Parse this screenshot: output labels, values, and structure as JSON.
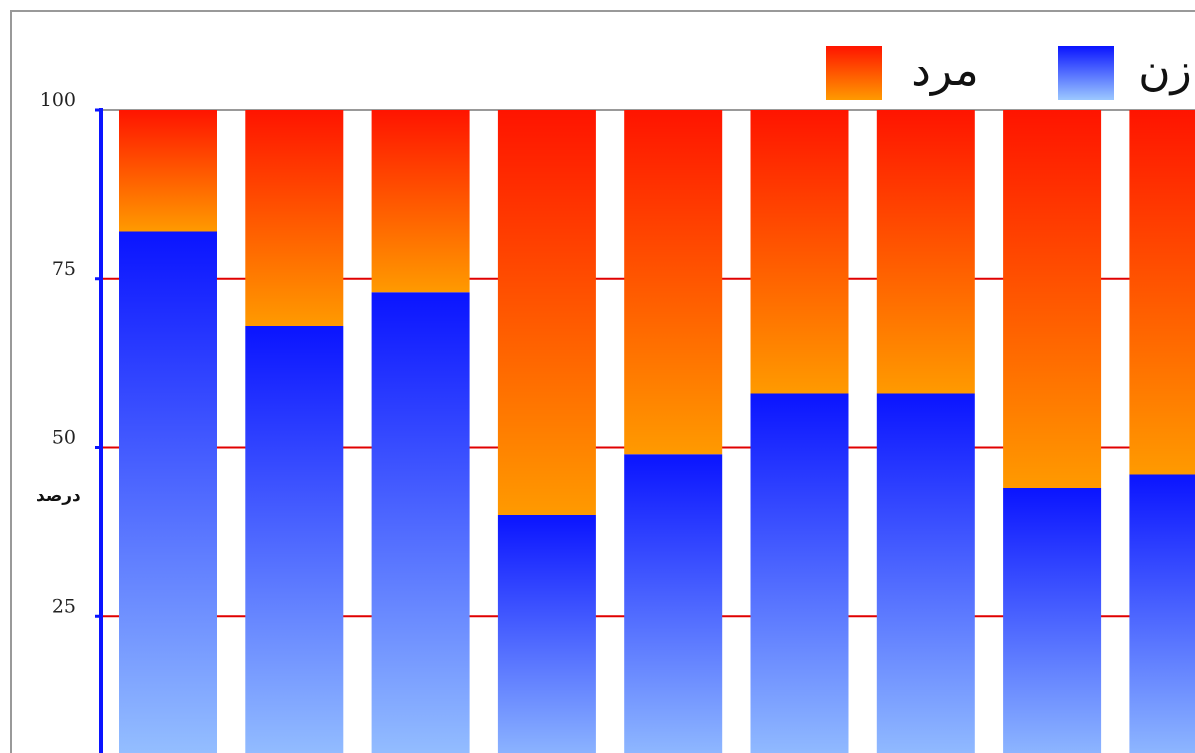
{
  "chart_data": {
    "type": "bar",
    "stacked": true,
    "percent": true,
    "ylabel": "درصد",
    "ylim": [
      0,
      100
    ],
    "yticks": [
      "25",
      "50",
      "75",
      "100"
    ],
    "grid": true,
    "legend": "top-right",
    "categories": [
      "",
      "",
      "",
      "",
      "",
      "",
      "",
      "",
      ""
    ],
    "series": [
      {
        "name": "زن",
        "values": [
          82,
          68,
          73,
          40,
          49,
          58,
          58,
          44,
          46
        ],
        "color_top": "#0a14ff",
        "color_bottom": "#9cc8ff"
      },
      {
        "name": "مرد",
        "values": [
          18,
          32,
          27,
          60,
          51,
          42,
          42,
          56,
          54
        ],
        "color_top": "#ff1400",
        "color_bottom": "#ff9a00"
      }
    ],
    "colors": {
      "axis": "#0a14ff",
      "grid": "#e00000",
      "frame": "#999999"
    }
  }
}
